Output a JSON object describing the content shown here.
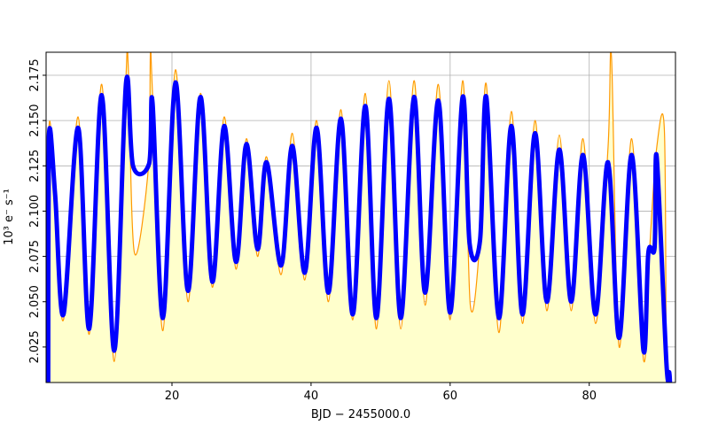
{
  "chart_data": {
    "type": "line",
    "xlabel": "BJD − 2455000.0",
    "ylabel": "10³ e⁻ s⁻¹",
    "xlim": [
      1.9,
      92.4
    ],
    "ylim": [
      2.0054,
      2.1877
    ],
    "xticks": [
      20,
      40,
      60,
      80
    ],
    "yticks": [
      {
        "value": 2.025,
        "label": "2.025"
      },
      {
        "value": 2.05,
        "label": "2.050"
      },
      {
        "value": 2.075,
        "label": "2.075"
      },
      {
        "value": 2.1,
        "label": "2.100"
      },
      {
        "value": 2.125,
        "label": "2.125"
      },
      {
        "value": 2.15,
        "label": "2.150"
      },
      {
        "value": 2.175,
        "label": "2.175"
      }
    ],
    "grid": true,
    "fill_color": "#ffffcc",
    "series": [
      {
        "color": "#ff9900",
        "x": [
          2.2,
          2.3,
          3.2,
          4.4,
          6.5,
          8.1,
          9.9,
          11.7,
          13.4,
          13.7,
          14.6,
          16.7,
          16.9,
          17.2,
          18.7,
          20.5,
          22.3,
          24.1,
          25.8,
          27.5,
          29.2,
          30.7,
          32.3,
          33.6,
          35.7,
          37.3,
          39.1,
          40.8,
          42.5,
          44.3,
          46.0,
          47.8,
          49.4,
          51.2,
          52.9,
          54.8,
          56.4,
          58.3,
          60.0,
          61.8,
          62.9,
          64.3,
          65.2,
          67.0,
          68.8,
          70.4,
          72.2,
          73.9,
          75.7,
          77.4,
          79.1,
          80.9,
          82.7,
          83.2,
          84.3,
          86.1,
          87.8,
          88.7,
          89.7,
          90.8,
          91.1,
          91.5
        ],
        "values": [
          2.006,
          2.145,
          2.11,
          2.04,
          2.152,
          2.032,
          2.17,
          2.017,
          2.175,
          2.181,
          2.077,
          2.128,
          2.188,
          2.165,
          2.034,
          2.178,
          2.05,
          2.165,
          2.058,
          2.152,
          2.068,
          2.14,
          2.075,
          2.13,
          2.065,
          2.143,
          2.062,
          2.15,
          2.05,
          2.156,
          2.04,
          2.165,
          2.035,
          2.172,
          2.035,
          2.172,
          2.048,
          2.17,
          2.04,
          2.172,
          2.048,
          2.085,
          2.17,
          2.033,
          2.155,
          2.038,
          2.15,
          2.045,
          2.142,
          2.045,
          2.14,
          2.038,
          2.135,
          2.185,
          2.025,
          2.14,
          2.018,
          2.08,
          2.135,
          2.145,
          2.015,
          2.011
        ],
        "width": 1.2,
        "fill": true
      },
      {
        "color": "#0000ff",
        "x": [
          2.2,
          2.3,
          3.2,
          4.4,
          6.5,
          8.1,
          9.9,
          11.7,
          13.4,
          14.4,
          16.7,
          17.2,
          18.7,
          20.5,
          22.3,
          24.1,
          25.8,
          27.5,
          29.2,
          30.7,
          32.3,
          33.6,
          35.7,
          37.3,
          39.1,
          40.8,
          42.5,
          44.3,
          46.0,
          47.8,
          49.4,
          51.2,
          52.9,
          54.8,
          56.4,
          58.3,
          60.0,
          61.8,
          62.8,
          64.3,
          65.2,
          67.0,
          68.8,
          70.4,
          72.2,
          73.9,
          75.7,
          77.4,
          79.1,
          80.9,
          82.7,
          84.3,
          86.1,
          87.8,
          88.5,
          89.4,
          89.7,
          91.1,
          91.5,
          91.6
        ],
        "values": [
          2.006,
          2.141,
          2.109,
          2.043,
          2.146,
          2.035,
          2.164,
          2.023,
          2.171,
          2.125,
          2.126,
          2.16,
          2.041,
          2.171,
          2.056,
          2.163,
          2.061,
          2.147,
          2.072,
          2.137,
          2.079,
          2.127,
          2.07,
          2.136,
          2.066,
          2.146,
          2.055,
          2.151,
          2.043,
          2.158,
          2.041,
          2.162,
          2.041,
          2.163,
          2.055,
          2.161,
          2.044,
          2.163,
          2.082,
          2.084,
          2.163,
          2.041,
          2.147,
          2.043,
          2.143,
          2.05,
          2.134,
          2.05,
          2.131,
          2.043,
          2.127,
          2.03,
          2.131,
          2.023,
          2.077,
          2.08,
          2.13,
          2.016,
          2.011,
          2.006
        ],
        "width": 5,
        "fill": false
      }
    ]
  }
}
